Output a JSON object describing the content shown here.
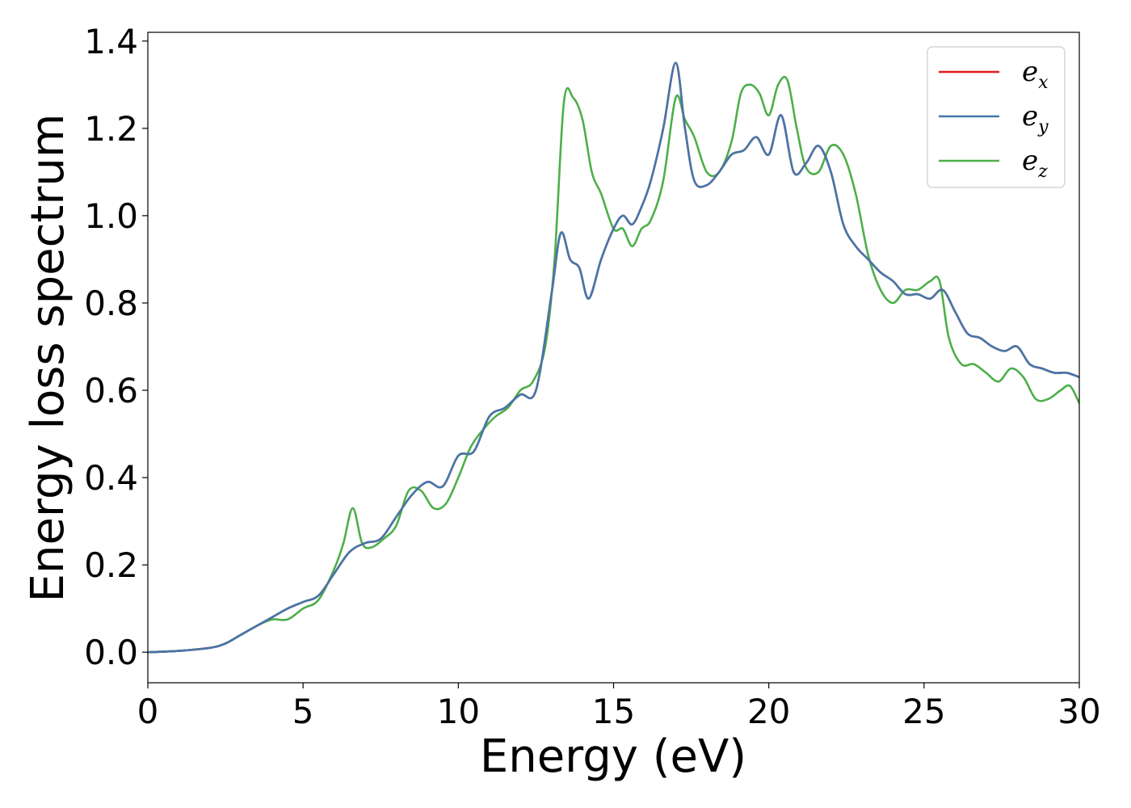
{
  "chart_data": {
    "type": "line",
    "title": "",
    "xlabel": "Energy (eV)",
    "ylabel": "Energy loss spectrum",
    "xlim": [
      0,
      30
    ],
    "ylim": [
      -0.07,
      1.42
    ],
    "xticks": [
      0,
      5,
      10,
      15,
      20,
      25,
      30
    ],
    "xtick_labels": [
      "0",
      "5",
      "10",
      "15",
      "20",
      "25",
      "30"
    ],
    "yticks": [
      0.0,
      0.2,
      0.4,
      0.6,
      0.8,
      1.0,
      1.2,
      1.4
    ],
    "ytick_labels": [
      "0.0",
      "0.2",
      "0.4",
      "0.6",
      "0.8",
      "1.0",
      "1.2",
      "1.4"
    ],
    "grid": false,
    "legend_position": "top-right",
    "series": [
      {
        "name": "e_x",
        "label_base": "e",
        "label_sub": "x",
        "color": "#e41a1c",
        "x": [
          0,
          1,
          2,
          2.5,
          3,
          3.5,
          4,
          4.5,
          5,
          5.5,
          6,
          6.5,
          7,
          7.5,
          8,
          8.5,
          9,
          9.5,
          10,
          10.5,
          11,
          11.5,
          12,
          12.5,
          13,
          13.3,
          13.6,
          13.9,
          14.2,
          14.6,
          15,
          15.3,
          15.6,
          15.9,
          16.2,
          16.6,
          17,
          17.3,
          17.6,
          18,
          18.4,
          18.8,
          19.2,
          19.6,
          20,
          20.4,
          20.8,
          21.2,
          21.6,
          22,
          22.4,
          22.8,
          23.2,
          23.6,
          24,
          24.4,
          24.8,
          25.2,
          25.6,
          26,
          26.4,
          26.8,
          27.2,
          27.6,
          28,
          28.4,
          28.8,
          29.2,
          29.6,
          30
        ],
        "y": [
          0,
          0.003,
          0.01,
          0.02,
          0.04,
          0.06,
          0.08,
          0.1,
          0.115,
          0.13,
          0.18,
          0.23,
          0.25,
          0.26,
          0.31,
          0.36,
          0.39,
          0.38,
          0.45,
          0.46,
          0.54,
          0.56,
          0.59,
          0.6,
          0.82,
          0.96,
          0.9,
          0.88,
          0.81,
          0.9,
          0.97,
          1.0,
          0.98,
          1.02,
          1.08,
          1.2,
          1.35,
          1.2,
          1.08,
          1.07,
          1.1,
          1.14,
          1.15,
          1.18,
          1.14,
          1.23,
          1.1,
          1.12,
          1.16,
          1.1,
          0.98,
          0.93,
          0.9,
          0.87,
          0.85,
          0.82,
          0.82,
          0.81,
          0.83,
          0.78,
          0.73,
          0.72,
          0.7,
          0.69,
          0.7,
          0.66,
          0.65,
          0.64,
          0.64,
          0.63
        ]
      },
      {
        "name": "e_y",
        "label_base": "e",
        "label_sub": "y",
        "color": "#4477aa",
        "x": [
          0,
          1,
          2,
          2.5,
          3,
          3.5,
          4,
          4.5,
          5,
          5.5,
          6,
          6.5,
          7,
          7.5,
          8,
          8.5,
          9,
          9.5,
          10,
          10.5,
          11,
          11.5,
          12,
          12.5,
          13,
          13.3,
          13.6,
          13.9,
          14.2,
          14.6,
          15,
          15.3,
          15.6,
          15.9,
          16.2,
          16.6,
          17,
          17.3,
          17.6,
          18,
          18.4,
          18.8,
          19.2,
          19.6,
          20,
          20.4,
          20.8,
          21.2,
          21.6,
          22,
          22.4,
          22.8,
          23.2,
          23.6,
          24,
          24.4,
          24.8,
          25.2,
          25.6,
          26,
          26.4,
          26.8,
          27.2,
          27.6,
          28,
          28.4,
          28.8,
          29.2,
          29.6,
          30
        ],
        "y": [
          0,
          0.003,
          0.01,
          0.02,
          0.04,
          0.06,
          0.08,
          0.1,
          0.115,
          0.13,
          0.18,
          0.23,
          0.25,
          0.26,
          0.31,
          0.36,
          0.39,
          0.38,
          0.45,
          0.46,
          0.54,
          0.56,
          0.59,
          0.6,
          0.82,
          0.96,
          0.9,
          0.88,
          0.81,
          0.9,
          0.97,
          1.0,
          0.98,
          1.02,
          1.08,
          1.2,
          1.35,
          1.2,
          1.08,
          1.07,
          1.1,
          1.14,
          1.15,
          1.18,
          1.14,
          1.23,
          1.1,
          1.12,
          1.16,
          1.1,
          0.98,
          0.93,
          0.9,
          0.87,
          0.85,
          0.82,
          0.82,
          0.81,
          0.83,
          0.78,
          0.73,
          0.72,
          0.7,
          0.69,
          0.7,
          0.66,
          0.65,
          0.64,
          0.64,
          0.63
        ]
      },
      {
        "name": "e_z",
        "label_base": "e",
        "label_sub": "z",
        "color": "#4daf4a",
        "x": [
          0,
          1,
          2,
          2.5,
          3,
          3.5,
          4,
          4.5,
          5,
          5.5,
          6,
          6.3,
          6.6,
          6.9,
          7.2,
          7.6,
          8,
          8.4,
          8.8,
          9.2,
          9.6,
          10,
          10.4,
          10.8,
          11.2,
          11.6,
          12,
          12.4,
          12.8,
          13.1,
          13.4,
          13.7,
          14,
          14.3,
          14.6,
          15,
          15.3,
          15.6,
          15.9,
          16.2,
          16.6,
          17,
          17.3,
          17.6,
          18,
          18.4,
          18.8,
          19.1,
          19.4,
          19.7,
          20,
          20.3,
          20.6,
          20.9,
          21.2,
          21.6,
          22,
          22.4,
          22.8,
          23.2,
          23.6,
          24,
          24.4,
          24.8,
          25.2,
          25.5,
          25.8,
          26.2,
          26.6,
          27,
          27.4,
          27.8,
          28.2,
          28.6,
          29,
          29.4,
          29.7,
          30
        ],
        "y": [
          0,
          0.003,
          0.01,
          0.02,
          0.04,
          0.06,
          0.075,
          0.075,
          0.1,
          0.12,
          0.19,
          0.25,
          0.33,
          0.25,
          0.24,
          0.26,
          0.29,
          0.37,
          0.37,
          0.33,
          0.34,
          0.4,
          0.47,
          0.51,
          0.54,
          0.56,
          0.6,
          0.62,
          0.7,
          0.9,
          1.26,
          1.27,
          1.22,
          1.1,
          1.05,
          0.97,
          0.97,
          0.93,
          0.97,
          0.99,
          1.08,
          1.27,
          1.22,
          1.18,
          1.1,
          1.1,
          1.17,
          1.28,
          1.3,
          1.28,
          1.23,
          1.3,
          1.31,
          1.2,
          1.11,
          1.1,
          1.16,
          1.14,
          1.05,
          0.91,
          0.83,
          0.8,
          0.83,
          0.83,
          0.85,
          0.85,
          0.72,
          0.66,
          0.66,
          0.64,
          0.62,
          0.65,
          0.63,
          0.58,
          0.58,
          0.6,
          0.61,
          0.57
        ]
      }
    ]
  }
}
